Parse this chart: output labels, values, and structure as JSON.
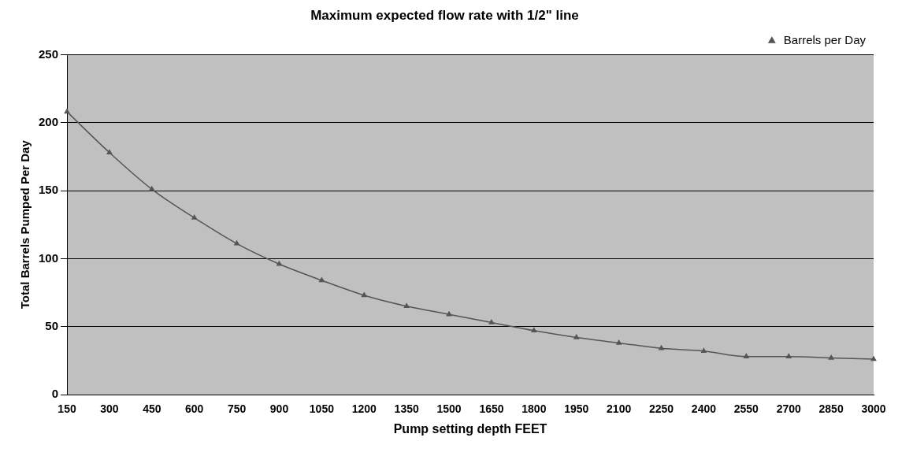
{
  "chart_data": {
    "type": "line",
    "title": "Maximum expected flow rate with 1/2\" line",
    "xlabel": "Pump setting depth FEET",
    "ylabel": "Total Barrels Pumped Per Day",
    "categories": [
      "150",
      "300",
      "450",
      "600",
      "750",
      "900",
      "1050",
      "1200",
      "1350",
      "1500",
      "1650",
      "1800",
      "1950",
      "2100",
      "2250",
      "2400",
      "2550",
      "2700",
      "2850",
      "3000"
    ],
    "series": [
      {
        "name": "Barrels per Day",
        "color": "#555555",
        "values": [
          208,
          178,
          151,
          130,
          111,
          96,
          84,
          73,
          65,
          59,
          53,
          47,
          42,
          38,
          34,
          32,
          28,
          28,
          27,
          26
        ]
      }
    ],
    "ylim": [
      0,
      250
    ],
    "yticks": [
      0,
      50,
      100,
      150,
      200,
      250
    ],
    "grid": "y",
    "legend": "top right",
    "marker": "triangle",
    "line_style": "solid"
  }
}
